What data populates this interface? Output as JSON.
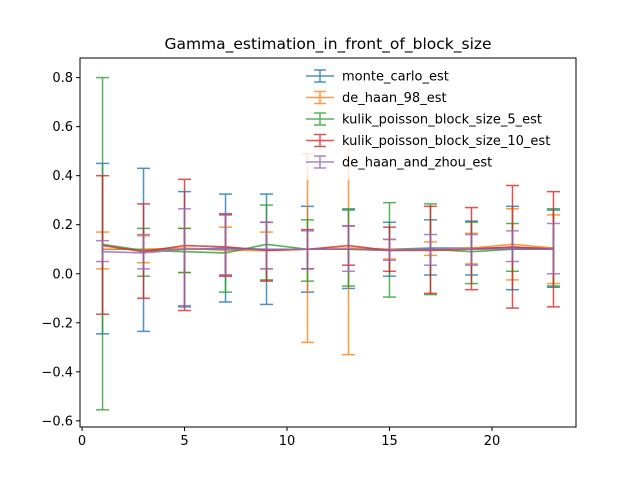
{
  "chart_data": {
    "type": "line",
    "errorbars": true,
    "title": "Gamma_estimation_in_front_of_block_size",
    "xlabel": "",
    "ylabel": "",
    "xlim": [
      -0.1,
      24.1
    ],
    "ylim": [
      -0.625,
      0.88
    ],
    "xticks": [
      0,
      5,
      10,
      15,
      20
    ],
    "yticks": [
      -0.6,
      -0.4,
      -0.2,
      0.0,
      0.2,
      0.4,
      0.6,
      0.8
    ],
    "ytick_labels": [
      "−0.6",
      "−0.4",
      "−0.2",
      "0.0",
      "0.2",
      "0.4",
      "0.6",
      "0.8"
    ],
    "legend_position": "top-right",
    "grid": false,
    "x": [
      1,
      3,
      5,
      7,
      9,
      11,
      13,
      15,
      17,
      19,
      21,
      23
    ],
    "series": [
      {
        "name": "monte_carlo_est",
        "color": "#1f77b4",
        "values": [
          0.1,
          0.1,
          0.1,
          0.105,
          0.1,
          0.1,
          0.1,
          0.1,
          0.105,
          0.105,
          0.105,
          0.105
        ],
        "lower": [
          -0.245,
          -0.235,
          -0.135,
          -0.115,
          -0.125,
          -0.075,
          -0.06,
          -0.01,
          -0.005,
          -0.005,
          -0.065,
          -0.055
        ],
        "upper": [
          0.45,
          0.43,
          0.335,
          0.325,
          0.325,
          0.275,
          0.26,
          0.21,
          0.22,
          0.215,
          0.275,
          0.26
        ]
      },
      {
        "name": "de_haan_98_est",
        "color": "#ff7f0e",
        "values": [
          0.1,
          0.1,
          0.105,
          0.095,
          0.095,
          0.1,
          0.105,
          0.1,
          0.1,
          0.105,
          0.12,
          0.105
        ],
        "lower": [
          0.02,
          0.045,
          0.005,
          -0.005,
          0.02,
          -0.28,
          -0.33,
          0.06,
          0.075,
          0.04,
          -0.025,
          -0.04
        ],
        "upper": [
          0.17,
          0.155,
          0.185,
          0.19,
          0.17,
          0.49,
          0.53,
          0.14,
          0.13,
          0.165,
          0.265,
          0.24
        ]
      },
      {
        "name": "kulik_poisson_block_size_5_est",
        "color": "#2ca02c",
        "values": [
          0.12,
          0.095,
          0.09,
          0.085,
          0.12,
          0.1,
          0.1,
          0.095,
          0.1,
          0.09,
          0.1,
          0.1
        ],
        "lower": [
          -0.555,
          -0.01,
          0.005,
          -0.075,
          -0.025,
          -0.03,
          -0.05,
          -0.095,
          -0.085,
          -0.04,
          0.01,
          -0.05
        ],
        "upper": [
          0.8,
          0.185,
          0.185,
          0.245,
          0.28,
          0.22,
          0.265,
          0.29,
          0.285,
          0.21,
          0.205,
          0.265
        ]
      },
      {
        "name": "kulik_poisson_block_size_10_est",
        "color": "#d62728",
        "values": [
          0.115,
          0.09,
          0.115,
          0.11,
          0.095,
          0.1,
          0.115,
          0.095,
          0.095,
          0.1,
          0.11,
          0.1
        ],
        "lower": [
          -0.165,
          -0.1,
          -0.15,
          -0.01,
          -0.03,
          0.02,
          0.035,
          0.01,
          -0.08,
          -0.065,
          -0.14,
          -0.135
        ],
        "upper": [
          0.4,
          0.285,
          0.385,
          0.24,
          0.21,
          0.18,
          0.195,
          0.19,
          0.275,
          0.27,
          0.36,
          0.335
        ]
      },
      {
        "name": "de_haan_and_zhou_est",
        "color": "#9467bd",
        "values": [
          0.09,
          0.085,
          0.1,
          0.1,
          0.1,
          0.1,
          0.1,
          0.095,
          0.1,
          0.1,
          0.1,
          0.1
        ],
        "lower": [
          0.05,
          0.02,
          -0.13,
          -0.005,
          0.02,
          0.02,
          0.01,
          0.055,
          0.035,
          0.035,
          0.05,
          0.0
        ],
        "upper": [
          0.135,
          0.16,
          0.265,
          0.245,
          0.21,
          0.175,
          0.195,
          0.14,
          0.16,
          0.16,
          0.175,
          0.205
        ]
      }
    ]
  }
}
